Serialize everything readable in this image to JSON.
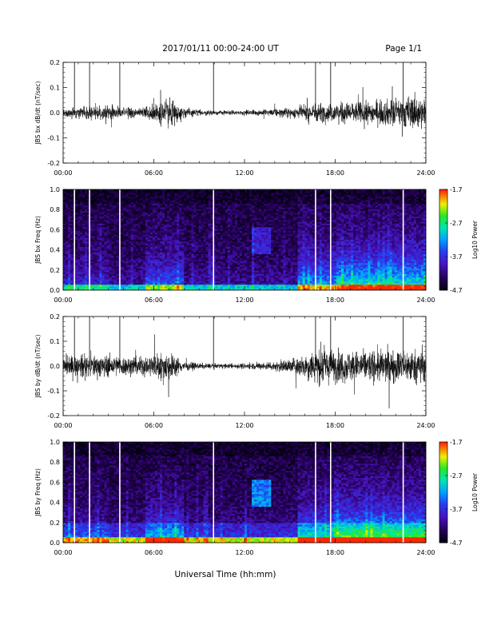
{
  "header": {
    "title": "2017/01/11  00:00-24:00 UT",
    "page": "Page 1/1"
  },
  "xlabel": "Universal Time (hh:mm)",
  "colors": {
    "background": "#ffffff",
    "ink": "#000000",
    "marker": "#ffffff"
  },
  "chart_data": [
    {
      "type": "line",
      "ylabel": "JBS bx dB/dt (nT/sec)",
      "xlim_hours": [
        0,
        24
      ],
      "ylim": [
        -0.2,
        0.2
      ],
      "xticks": [
        "00:00",
        "06:00",
        "12:00",
        "18:00",
        "24:00"
      ],
      "yticks": [
        "0.2",
        "0.1",
        "0.0",
        "-0.1",
        "-0.2"
      ],
      "marker_hours": [
        0.75,
        1.75,
        3.75,
        9.95,
        16.7,
        17.7,
        22.5
      ],
      "envelope": {
        "x_hours": [
          0,
          1,
          2,
          3,
          4,
          5,
          5.5,
          6,
          6.5,
          7,
          7.5,
          8,
          9,
          10,
          11,
          12,
          13,
          14,
          15,
          16,
          16.5,
          17,
          17.5,
          18,
          19,
          20,
          21,
          22,
          23,
          24
        ],
        "amplitude": [
          0.02,
          0.025,
          0.03,
          0.025,
          0.02,
          0.02,
          0.025,
          0.035,
          0.05,
          0.065,
          0.04,
          0.02,
          0.012,
          0.01,
          0.01,
          0.01,
          0.012,
          0.015,
          0.02,
          0.03,
          0.04,
          0.04,
          0.035,
          0.04,
          0.045,
          0.045,
          0.05,
          0.06,
          0.07,
          0.06
        ]
      }
    },
    {
      "type": "heatmap",
      "ylabel": "JBS bx Freq (Hz)",
      "xlim_hours": [
        0,
        24
      ],
      "ylim": [
        0,
        1.0
      ],
      "xticks": [
        "00:00",
        "06:00",
        "12:00",
        "18:00",
        "24:00"
      ],
      "yticks": [
        "1.0",
        "0.8",
        "0.6",
        "0.4",
        "0.2",
        "0.0"
      ],
      "marker_hours": [
        0.75,
        1.75,
        3.75,
        9.95,
        16.7,
        17.7,
        22.5
      ],
      "colorbar": {
        "label": "Log10 Power",
        "ticks": [
          "-1.7",
          "-2.7",
          "-3.7",
          "-4.7"
        ],
        "range": [
          -4.7,
          -1.7
        ]
      }
    },
    {
      "type": "line",
      "ylabel": "JBS by dB/dt (nT/sec)",
      "xlim_hours": [
        0,
        24
      ],
      "ylim": [
        -0.2,
        0.2
      ],
      "xticks": [
        "00:00",
        "06:00",
        "12:00",
        "18:00",
        "24:00"
      ],
      "yticks": [
        "0.2",
        "0.1",
        "0.0",
        "-0.1",
        "-0.2"
      ],
      "marker_hours": [
        0.75,
        1.75,
        3.75,
        9.95,
        16.7,
        17.7,
        22.5
      ],
      "envelope": {
        "x_hours": [
          0,
          1,
          2,
          3,
          4,
          5,
          5.5,
          6,
          6.5,
          7,
          7.5,
          8,
          9,
          10,
          11,
          12,
          13,
          14,
          15,
          16,
          16.5,
          17,
          17.5,
          18,
          19,
          20,
          21,
          22,
          23,
          24
        ],
        "amplitude": [
          0.04,
          0.045,
          0.05,
          0.045,
          0.04,
          0.04,
          0.045,
          0.05,
          0.06,
          0.065,
          0.04,
          0.02,
          0.012,
          0.01,
          0.01,
          0.012,
          0.015,
          0.02,
          0.03,
          0.05,
          0.07,
          0.08,
          0.07,
          0.07,
          0.065,
          0.065,
          0.07,
          0.07,
          0.07,
          0.065
        ]
      }
    },
    {
      "type": "heatmap",
      "ylabel": "JBS by Freq (Hz)",
      "xlim_hours": [
        0,
        24
      ],
      "ylim": [
        0,
        1.0
      ],
      "xticks": [
        "00:00",
        "06:00",
        "12:00",
        "18:00",
        "24:00"
      ],
      "yticks": [
        "1.0",
        "0.8",
        "0.6",
        "0.4",
        "0.2",
        "0.0"
      ],
      "marker_hours": [
        0.75,
        1.75,
        3.75,
        9.95,
        16.7,
        17.7,
        22.5
      ],
      "colorbar": {
        "label": "Log10 Power",
        "ticks": [
          "-1.7",
          "-2.7",
          "-3.7",
          "-4.7"
        ],
        "range": [
          -4.7,
          -1.7
        ]
      }
    }
  ]
}
